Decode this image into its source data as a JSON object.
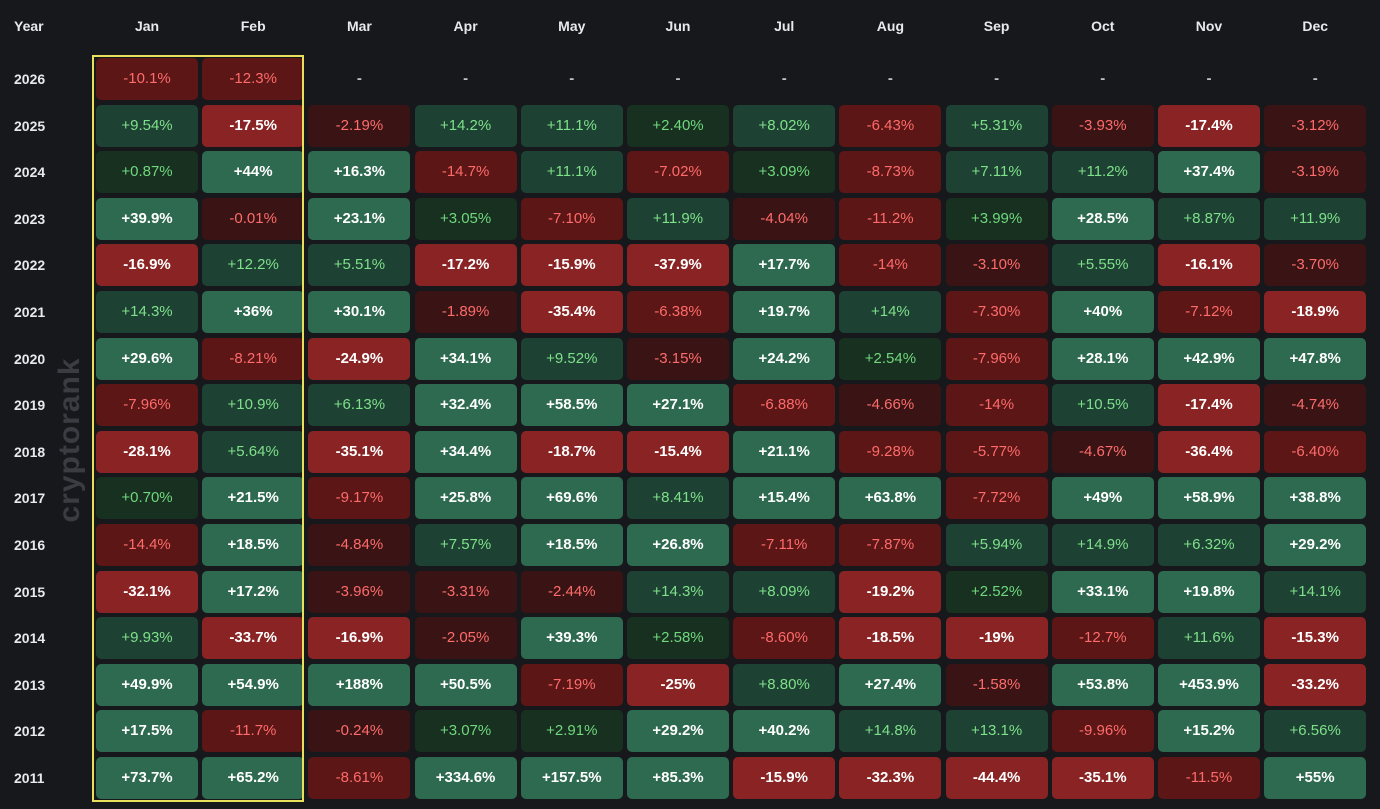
{
  "watermark": "cryptorank",
  "colors": {
    "background": "#17181c",
    "highlight_border": "#e8e05a"
  },
  "chart_data": {
    "type": "heatmap",
    "corner_label": "Year",
    "columns": [
      "Jan",
      "Feb",
      "Mar",
      "Apr",
      "May",
      "Jun",
      "Jul",
      "Aug",
      "Sep",
      "Oct",
      "Nov",
      "Dec"
    ],
    "highlighted_columns": [
      "Jan",
      "Feb"
    ],
    "rows": [
      {
        "year": "2026",
        "values": [
          "-10.1%",
          "-12.3%",
          "-",
          "-",
          "-",
          "-",
          "-",
          "-",
          "-",
          "-",
          "-",
          "-"
        ]
      },
      {
        "year": "2025",
        "values": [
          "+9.54%",
          "-17.5%",
          "-2.19%",
          "+14.2%",
          "+11.1%",
          "+2.40%",
          "+8.02%",
          "-6.43%",
          "+5.31%",
          "-3.93%",
          "-17.4%",
          "-3.12%"
        ]
      },
      {
        "year": "2024",
        "values": [
          "+0.87%",
          "+44%",
          "+16.3%",
          "-14.7%",
          "+11.1%",
          "-7.02%",
          "+3.09%",
          "-8.73%",
          "+7.11%",
          "+11.2%",
          "+37.4%",
          "-3.19%"
        ]
      },
      {
        "year": "2023",
        "values": [
          "+39.9%",
          "-0.01%",
          "+23.1%",
          "+3.05%",
          "-7.10%",
          "+11.9%",
          "-4.04%",
          "-11.2%",
          "+3.99%",
          "+28.5%",
          "+8.87%",
          "+11.9%"
        ]
      },
      {
        "year": "2022",
        "values": [
          "-16.9%",
          "+12.2%",
          "+5.51%",
          "-17.2%",
          "-15.9%",
          "-37.9%",
          "+17.7%",
          "-14%",
          "-3.10%",
          "+5.55%",
          "-16.1%",
          "-3.70%"
        ]
      },
      {
        "year": "2021",
        "values": [
          "+14.3%",
          "+36%",
          "+30.1%",
          "-1.89%",
          "-35.4%",
          "-6.38%",
          "+19.7%",
          "+14%",
          "-7.30%",
          "+40%",
          "-7.12%",
          "-18.9%"
        ]
      },
      {
        "year": "2020",
        "values": [
          "+29.6%",
          "-8.21%",
          "-24.9%",
          "+34.1%",
          "+9.52%",
          "-3.15%",
          "+24.2%",
          "+2.54%",
          "-7.96%",
          "+28.1%",
          "+42.9%",
          "+47.8%"
        ]
      },
      {
        "year": "2019",
        "values": [
          "-7.96%",
          "+10.9%",
          "+6.13%",
          "+32.4%",
          "+58.5%",
          "+27.1%",
          "-6.88%",
          "-4.66%",
          "-14%",
          "+10.5%",
          "-17.4%",
          "-4.74%"
        ]
      },
      {
        "year": "2018",
        "values": [
          "-28.1%",
          "+5.64%",
          "-35.1%",
          "+34.4%",
          "-18.7%",
          "-15.4%",
          "+21.1%",
          "-9.28%",
          "-5.77%",
          "-4.67%",
          "-36.4%",
          "-6.40%"
        ]
      },
      {
        "year": "2017",
        "values": [
          "+0.70%",
          "+21.5%",
          "-9.17%",
          "+25.8%",
          "+69.6%",
          "+8.41%",
          "+15.4%",
          "+63.8%",
          "-7.72%",
          "+49%",
          "+58.9%",
          "+38.8%"
        ]
      },
      {
        "year": "2016",
        "values": [
          "-14.4%",
          "+18.5%",
          "-4.84%",
          "+7.57%",
          "+18.5%",
          "+26.8%",
          "-7.11%",
          "-7.87%",
          "+5.94%",
          "+14.9%",
          "+6.32%",
          "+29.2%"
        ]
      },
      {
        "year": "2015",
        "values": [
          "-32.1%",
          "+17.2%",
          "-3.96%",
          "-3.31%",
          "-2.44%",
          "+14.3%",
          "+8.09%",
          "-19.2%",
          "+2.52%",
          "+33.1%",
          "+19.8%",
          "+14.1%"
        ]
      },
      {
        "year": "2014",
        "values": [
          "+9.93%",
          "-33.7%",
          "-16.9%",
          "-2.05%",
          "+39.3%",
          "+2.58%",
          "-8.60%",
          "-18.5%",
          "-19%",
          "-12.7%",
          "+11.6%",
          "-15.3%"
        ]
      },
      {
        "year": "2013",
        "values": [
          "+49.9%",
          "+54.9%",
          "+188%",
          "+50.5%",
          "-7.19%",
          "-25%",
          "+8.80%",
          "+27.4%",
          "-1.58%",
          "+53.8%",
          "+453.9%",
          "-33.2%"
        ]
      },
      {
        "year": "2012",
        "values": [
          "+17.5%",
          "-11.7%",
          "-0.24%",
          "+3.07%",
          "+2.91%",
          "+29.2%",
          "+40.2%",
          "+14.8%",
          "+13.1%",
          "-9.96%",
          "+15.2%",
          "+6.56%"
        ]
      },
      {
        "year": "2011",
        "values": [
          "+73.7%",
          "+65.2%",
          "-8.61%",
          "+334.6%",
          "+157.5%",
          "+85.3%",
          "-15.9%",
          "-32.3%",
          "-44.4%",
          "-35.1%",
          "-11.5%",
          "+55%"
        ]
      }
    ]
  }
}
